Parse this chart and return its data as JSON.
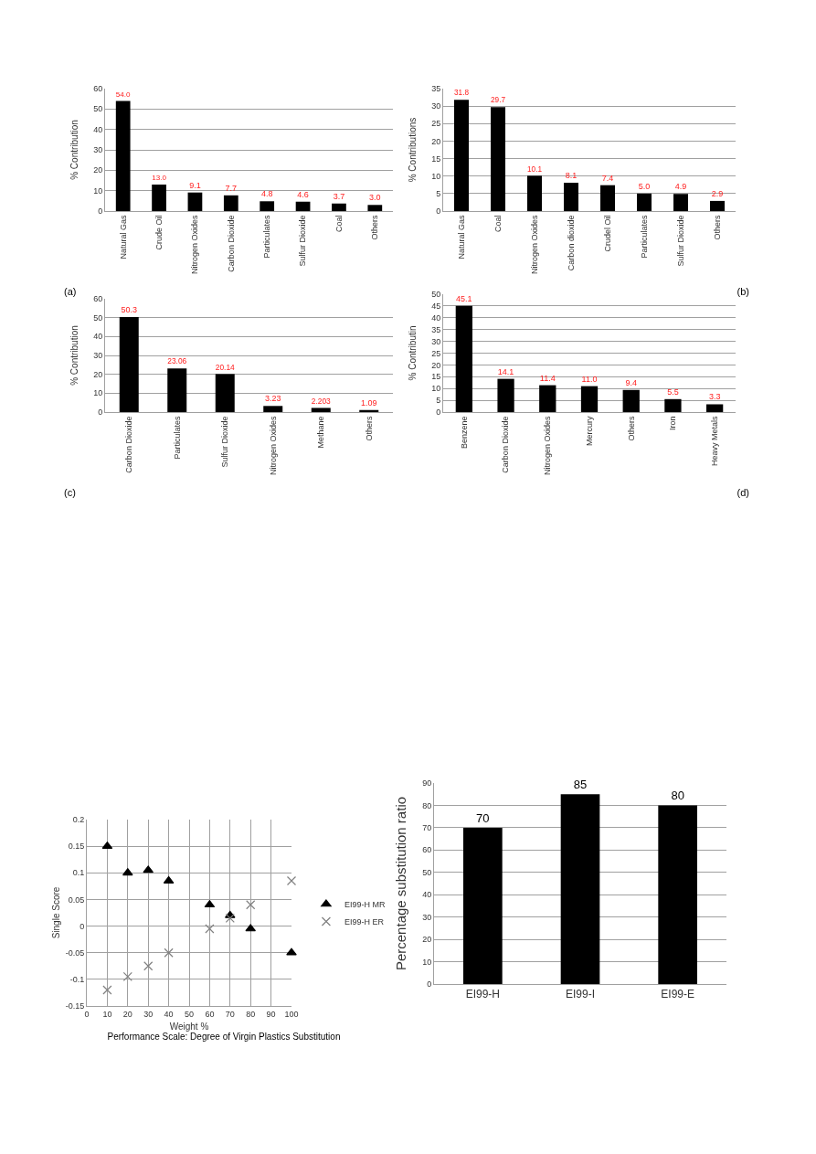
{
  "chart_data": [
    {
      "type": "bar",
      "ylabel": "% Contribution",
      "categories": [
        "Natural Gas",
        "Crude Oil",
        "Nitrogen Oxides",
        "Carbon Dioxide",
        "Particulates",
        "Sulfur Dioxide",
        "Coal",
        "Others"
      ],
      "values": [
        54.0,
        13.0,
        9.1,
        7.7,
        4.8,
        4.6,
        3.7,
        3.0
      ],
      "value_labels": [
        "54.0",
        "13.0",
        "9.1",
        "7.7",
        "4.8",
        "4.6",
        "3.7",
        "3.0"
      ],
      "color": "#000000",
      "ylim": [
        0,
        60
      ],
      "yticks": [
        0,
        10,
        20,
        30,
        40,
        50,
        60
      ],
      "grid": "y",
      "legend": false,
      "annotations": [
        "(a)"
      ]
    },
    {
      "type": "bar",
      "ylabel": "% Contributions",
      "categories": [
        "Natural Gas",
        "Coal",
        "Nitrogen Oxides",
        "Carbon dioxide",
        "Crudel Oil",
        "Particulates",
        "Sulfur Dioxide",
        "Others"
      ],
      "values": [
        31.8,
        29.7,
        10.1,
        8.1,
        7.4,
        5.0,
        4.9,
        2.9
      ],
      "value_labels": [
        "31.8",
        "29.7",
        "10.1",
        "8.1",
        "7.4",
        "5.0",
        "4.9",
        "2.9"
      ],
      "color": "#000000",
      "ylim": [
        0,
        35
      ],
      "yticks": [
        0,
        5,
        10,
        15,
        20,
        25,
        30,
        35
      ],
      "grid": "y",
      "legend": false,
      "annotations": [
        "(b)"
      ]
    },
    {
      "type": "bar",
      "ylabel": "% Contribution",
      "categories": [
        "Carbon Dioxide",
        "Particulates",
        "Sulfur Dioxide",
        "Nitrogen Oxides",
        "Methane",
        "Others"
      ],
      "values": [
        50.3,
        23.06,
        20.14,
        3.23,
        2.203,
        1.09
      ],
      "value_labels": [
        "50.3",
        "23.06",
        "20.14",
        "3.23",
        "2.203",
        "1.09"
      ],
      "color": "#000000",
      "ylim": [
        0,
        60
      ],
      "yticks": [
        0,
        10,
        20,
        30,
        40,
        50,
        60
      ],
      "grid": "y",
      "legend": false,
      "annotations": [
        "(c)"
      ]
    },
    {
      "type": "bar",
      "ylabel": "% Contributin",
      "categories": [
        "Benzene",
        "Carbon Dioxide",
        "Nitrogen Oxides",
        "Mercury",
        "Others",
        "Iron",
        "Heavy Metals"
      ],
      "values": [
        45.1,
        14.1,
        11.4,
        11.0,
        9.4,
        5.5,
        3.3
      ],
      "value_labels": [
        "45.1",
        "14.1",
        "11.4",
        "11.0",
        "9.4",
        "5.5",
        "3.3"
      ],
      "color": "#000000",
      "ylim": [
        0,
        50
      ],
      "yticks": [
        0,
        5,
        10,
        15,
        20,
        25,
        30,
        35,
        40,
        45,
        50
      ],
      "grid": "y",
      "legend": false,
      "annotations": [
        "(d)"
      ]
    },
    {
      "type": "scatter",
      "xlabel": "Weight %",
      "ylabel": "Single Score",
      "x": [
        10,
        20,
        30,
        40,
        60,
        70,
        80,
        100
      ],
      "series": [
        {
          "name": "EI99-H MR",
          "color": "#000000",
          "marker": "triangle",
          "values": [
            0.15,
            0.1,
            0.105,
            0.085,
            0.04,
            0.02,
            -0.005,
            -0.05
          ]
        },
        {
          "name": "EI99-H ER",
          "color": "#808080",
          "marker": "cross",
          "values": [
            -0.12,
            -0.095,
            -0.075,
            -0.05,
            -0.005,
            0.015,
            0.04,
            0.085
          ]
        }
      ],
      "xlim": [
        0,
        100
      ],
      "xticks": [
        0,
        10,
        20,
        30,
        40,
        50,
        60,
        70,
        80,
        90,
        100
      ],
      "ylim": [
        -0.15,
        0.2
      ],
      "yticks": [
        -0.15,
        -0.1,
        -0.05,
        0,
        0.05,
        0.1,
        0.15,
        0.2
      ],
      "grid": true,
      "legend": "right",
      "annotations": [
        "Performance Scale: Degree of Virgin Plastics Substitution"
      ]
    },
    {
      "type": "bar",
      "ylabel": "Percentage substitution ratio",
      "categories": [
        "EI99-H",
        "EI99-I",
        "EI99-E"
      ],
      "values": [
        70,
        85,
        80
      ],
      "data_labels": true,
      "color": "#000000",
      "ylim": [
        0,
        90
      ],
      "yticks": [
        0,
        10,
        20,
        30,
        40,
        50,
        60,
        70,
        80,
        90
      ],
      "grid": "y",
      "legend": false
    }
  ]
}
